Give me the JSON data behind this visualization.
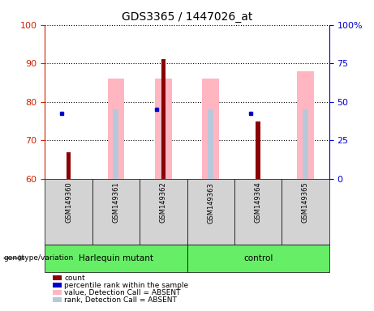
{
  "title": "GDS3365 / 1447026_at",
  "samples": [
    "GSM149360",
    "GSM149361",
    "GSM149362",
    "GSM149363",
    "GSM149364",
    "GSM149365"
  ],
  "ylim_left": [
    60,
    100
  ],
  "ylim_right": [
    0,
    100
  ],
  "yticks_left": [
    60,
    70,
    80,
    90,
    100
  ],
  "ytick_labels_left": [
    "60",
    "70",
    "80",
    "90",
    "100"
  ],
  "yticks_right": [
    0,
    25,
    50,
    75,
    100
  ],
  "ytick_labels_right": [
    "0",
    "25",
    "50",
    "75",
    "100%"
  ],
  "left_axis_color": "#CC2200",
  "right_axis_color": "#0000CC",
  "red_bar_tops": [
    67,
    null,
    91,
    null,
    75,
    null
  ],
  "pink_bar_tops": [
    null,
    86,
    86,
    86,
    null,
    88
  ],
  "blue_square_y": [
    77,
    null,
    78,
    null,
    77,
    null
  ],
  "lavender_bar_tops_pct": [
    null,
    45,
    45,
    45,
    null,
    45
  ],
  "pink_color": "#FFB6C1",
  "lavender_color": "#B8C8DC",
  "red_color": "#8B0000",
  "blue_color": "#0000CC",
  "plot_bg": "#FFFFFF",
  "gray_bg": "#D3D3D3",
  "green_bg": "#66EE66",
  "group1_label": "Harlequin mutant",
  "group2_label": "control",
  "group1_indices": [
    0,
    1,
    2
  ],
  "group2_indices": [
    3,
    4,
    5
  ],
  "genotype_label": "genotype/variation",
  "legend_items": [
    {
      "label": "count",
      "color": "#8B0000"
    },
    {
      "label": "percentile rank within the sample",
      "color": "#0000CC"
    },
    {
      "label": "value, Detection Call = ABSENT",
      "color": "#FFB6C1"
    },
    {
      "label": "rank, Detection Call = ABSENT",
      "color": "#B8C8DC"
    }
  ]
}
